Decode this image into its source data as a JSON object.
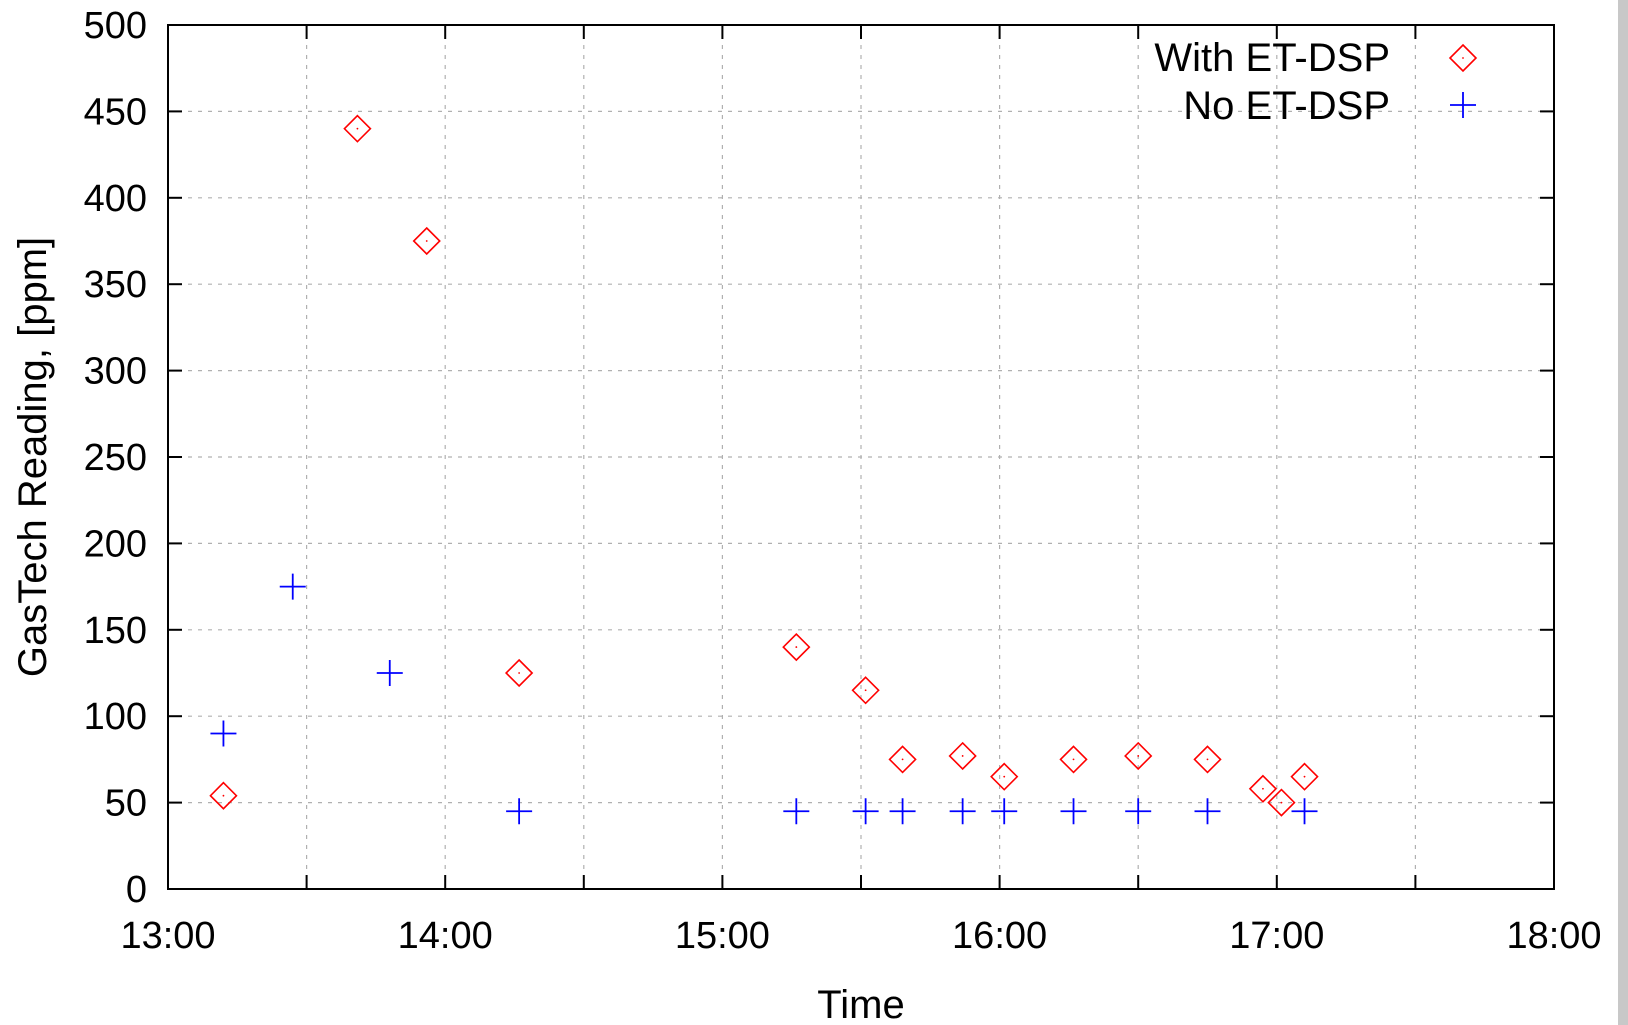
{
  "chart_data": {
    "type": "scatter",
    "xlabel": "Time",
    "ylabel": "GasTech Reading, [ppm]",
    "xlim": [
      "13:00",
      "18:00"
    ],
    "ylim": [
      0,
      500
    ],
    "x_ticks": [
      "13:00",
      "14:00",
      "15:00",
      "16:00",
      "17:00",
      "18:00"
    ],
    "y_ticks": [
      0,
      50,
      100,
      150,
      200,
      250,
      300,
      350,
      400,
      450,
      500
    ],
    "grid": true,
    "legend_position": "top-right",
    "series": [
      {
        "name": "With ET-DSP",
        "marker": "diamond",
        "color": "#ff0000",
        "points": [
          {
            "x": "13:12",
            "y": 54
          },
          {
            "x": "13:41",
            "y": 440
          },
          {
            "x": "13:56",
            "y": 375
          },
          {
            "x": "14:16",
            "y": 125
          },
          {
            "x": "15:16",
            "y": 140
          },
          {
            "x": "15:31",
            "y": 115
          },
          {
            "x": "15:39",
            "y": 75
          },
          {
            "x": "15:52",
            "y": 77
          },
          {
            "x": "16:01",
            "y": 65
          },
          {
            "x": "16:16",
            "y": 75
          },
          {
            "x": "16:30",
            "y": 77
          },
          {
            "x": "16:45",
            "y": 75
          },
          {
            "x": "16:57",
            "y": 58
          },
          {
            "x": "17:01",
            "y": 50
          },
          {
            "x": "17:06",
            "y": 65
          }
        ]
      },
      {
        "name": "No ET-DSP",
        "marker": "plus",
        "color": "#0000ff",
        "points": [
          {
            "x": "13:12",
            "y": 90
          },
          {
            "x": "13:27",
            "y": 175
          },
          {
            "x": "13:48",
            "y": 125
          },
          {
            "x": "14:16",
            "y": 45
          },
          {
            "x": "15:16",
            "y": 45
          },
          {
            "x": "15:31",
            "y": 45
          },
          {
            "x": "15:39",
            "y": 45
          },
          {
            "x": "15:52",
            "y": 45
          },
          {
            "x": "16:01",
            "y": 45
          },
          {
            "x": "16:16",
            "y": 45
          },
          {
            "x": "16:30",
            "y": 45
          },
          {
            "x": "16:45",
            "y": 45
          },
          {
            "x": "17:06",
            "y": 45
          }
        ]
      }
    ]
  }
}
